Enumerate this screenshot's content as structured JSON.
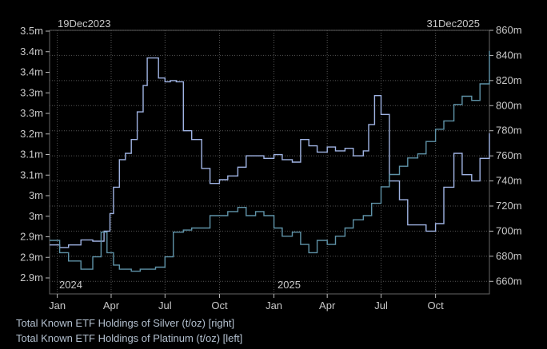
{
  "chart_data": {
    "type": "line",
    "start_label": "19Dec2023",
    "end_label": "31Dec2025",
    "x_month_ticks": [
      "Jan",
      "Apr",
      "Jul",
      "Oct",
      "Jan",
      "Apr",
      "Jul",
      "Oct"
    ],
    "year_labels": [
      "2024",
      "2025"
    ],
    "left_axis": {
      "unit": "oz",
      "ticks": [
        "2.9m",
        "2.9m",
        "2.9m",
        "3m",
        "3m",
        "3.1m",
        "3.1m",
        "3.2m",
        "3.3m",
        "3.3m",
        "3.4m",
        "3.4m",
        "3.5m"
      ],
      "ylim": [
        2.86,
        3.5
      ]
    },
    "right_axis": {
      "unit": "oz",
      "ticks": [
        "660m",
        "680m",
        "700m",
        "720m",
        "740m",
        "760m",
        "780m",
        "800m",
        "820m",
        "840m",
        "860m"
      ],
      "ylim": [
        650,
        860
      ]
    },
    "grid": true,
    "series": [
      {
        "name": "Total Known ETF Holdings of Silver (t/oz) [right]",
        "axis": "right",
        "color": "#9fb3e3",
        "x": [
          "2023-12-19",
          "2024-01-05",
          "2024-01-20",
          "2024-02-10",
          "2024-03-01",
          "2024-03-20",
          "2024-03-30",
          "2024-04-05",
          "2024-04-15",
          "2024-04-25",
          "2024-05-05",
          "2024-05-15",
          "2024-05-25",
          "2024-06-01",
          "2024-06-10",
          "2024-06-20",
          "2024-07-01",
          "2024-07-10",
          "2024-07-20",
          "2024-08-01",
          "2024-08-15",
          "2024-09-01",
          "2024-09-15",
          "2024-10-01",
          "2024-10-15",
          "2024-11-01",
          "2024-11-15",
          "2024-12-01",
          "2024-12-15",
          "2025-01-01",
          "2025-01-15",
          "2025-02-01",
          "2025-02-15",
          "2025-03-01",
          "2025-03-15",
          "2025-04-01",
          "2025-04-15",
          "2025-05-01",
          "2025-05-15",
          "2025-06-01",
          "2025-06-10",
          "2025-06-20",
          "2025-07-01",
          "2025-07-15",
          "2025-08-01",
          "2025-08-15",
          "2025-09-01",
          "2025-09-15",
          "2025-10-01",
          "2025-10-15",
          "2025-11-01",
          "2025-11-15",
          "2025-12-01",
          "2025-12-15",
          "2025-12-31"
        ],
        "values": [
          689,
          687,
          689,
          693,
          692,
          700,
          714,
          735,
          757,
          762,
          773,
          795,
          816,
          838,
          838,
          822,
          819,
          820,
          819,
          780,
          773,
          750,
          738,
          741,
          744,
          751,
          760,
          760,
          758,
          761,
          757,
          755,
          773,
          768,
          763,
          767,
          764,
          766,
          760,
          764,
          785,
          808,
          793,
          740,
          725,
          705,
          705,
          700,
          706,
          735,
          762,
          745,
          740,
          758,
          778
        ]
      },
      {
        "name": "Total Known ETF Holdings of Platinum (t/oz) [left]",
        "axis": "left",
        "color": "#5f93a8",
        "x": [
          "2023-12-19",
          "2024-01-05",
          "2024-01-20",
          "2024-02-10",
          "2024-03-01",
          "2024-03-15",
          "2024-03-25",
          "2024-04-05",
          "2024-04-15",
          "2024-04-25",
          "2024-05-05",
          "2024-05-20",
          "2024-06-01",
          "2024-06-15",
          "2024-07-01",
          "2024-07-15",
          "2024-08-01",
          "2024-08-15",
          "2024-09-01",
          "2024-09-15",
          "2024-10-01",
          "2024-10-15",
          "2024-11-01",
          "2024-11-15",
          "2024-12-01",
          "2024-12-15",
          "2025-01-01",
          "2025-01-15",
          "2025-02-01",
          "2025-02-15",
          "2025-03-01",
          "2025-03-15",
          "2025-04-01",
          "2025-04-15",
          "2025-05-01",
          "2025-05-15",
          "2025-06-01",
          "2025-06-15",
          "2025-07-01",
          "2025-07-15",
          "2025-08-01",
          "2025-08-15",
          "2025-09-01",
          "2025-09-15",
          "2025-10-01",
          "2025-10-15",
          "2025-11-01",
          "2025-11-15",
          "2025-12-01",
          "2025-12-15",
          "2025-12-31"
        ],
        "values": [
          2.99,
          2.96,
          2.94,
          2.92,
          2.95,
          3.01,
          2.96,
          2.93,
          2.92,
          2.92,
          2.915,
          2.92,
          2.92,
          2.925,
          2.95,
          3.01,
          3.015,
          3.02,
          3.02,
          3.05,
          3.05,
          3.06,
          3.07,
          3.05,
          3.06,
          3.05,
          3.02,
          3.0,
          3.01,
          2.98,
          2.96,
          2.99,
          2.98,
          3.0,
          3.02,
          3.04,
          3.05,
          3.08,
          3.12,
          3.15,
          3.17,
          3.19,
          3.2,
          3.23,
          3.26,
          3.28,
          3.32,
          3.34,
          3.33,
          3.37,
          3.45
        ]
      }
    ]
  }
}
